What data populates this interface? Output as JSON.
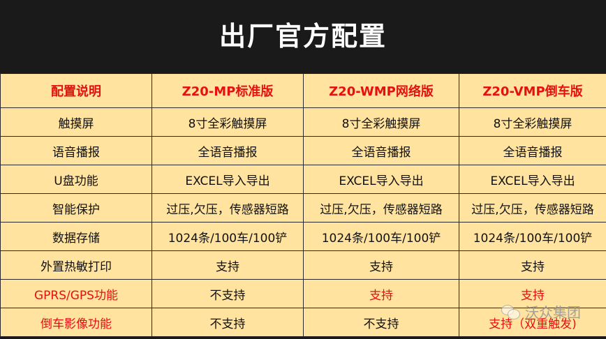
{
  "title": "出厂官方配置",
  "table": {
    "headers": [
      "配置说明",
      "Z20-MP标准版",
      "Z20-WMP网络版",
      "Z20-VMP倒车版"
    ],
    "rows": [
      {
        "cells": [
          "触摸屏",
          "8寸全彩触摸屏",
          "8寸全彩触摸屏",
          "8寸全彩触摸屏"
        ],
        "red": [
          false,
          false,
          false,
          false
        ]
      },
      {
        "cells": [
          "语音播报",
          "全语音播报",
          "全语音播报",
          "全语音播报"
        ],
        "red": [
          false,
          false,
          false,
          false
        ]
      },
      {
        "cells": [
          "U盘功能",
          "EXCEL导入导出",
          "EXCEL导入导出",
          "EXCEL导入导出"
        ],
        "red": [
          false,
          false,
          false,
          false
        ]
      },
      {
        "cells": [
          "智能保护",
          "过压,欠压，传感器短路",
          "过压,欠压，传感器短路",
          "过压,欠压，传感器短路"
        ],
        "red": [
          false,
          false,
          false,
          false
        ]
      },
      {
        "cells": [
          "数据存储",
          "1024条/100车/100铲",
          "1024条/100车/100铲",
          "1024条/100车/100铲"
        ],
        "red": [
          false,
          false,
          false,
          false
        ]
      },
      {
        "cells": [
          "外置热敏打印",
          "支持",
          "支持",
          "支持"
        ],
        "red": [
          false,
          false,
          false,
          false
        ]
      },
      {
        "cells": [
          "GPRS/GPS功能",
          "不支持",
          "支持",
          "支持"
        ],
        "red": [
          true,
          false,
          true,
          true
        ]
      },
      {
        "cells": [
          "倒车影像功能",
          "不支持",
          "不支持",
          "支持（双重触发)"
        ],
        "red": [
          true,
          false,
          false,
          true
        ]
      }
    ]
  },
  "watermark": {
    "text": "沃众集团",
    "icon": "wechat-icon"
  },
  "colors": {
    "background": "#1a1a1a",
    "cell": "#ffe39e",
    "accent_red": "#e61010"
  }
}
